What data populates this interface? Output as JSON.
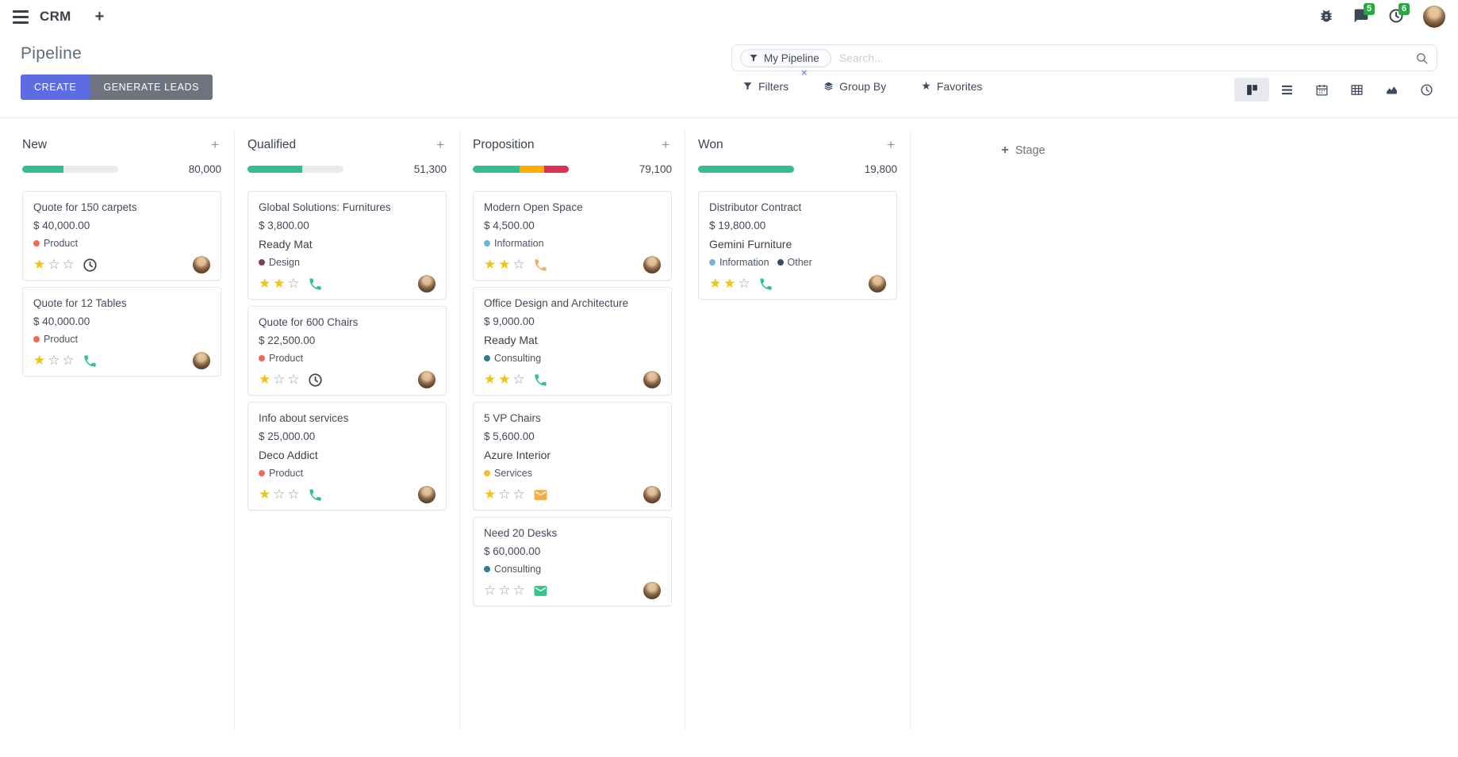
{
  "navbar": {
    "app_name": "CRM",
    "messages_badge": "5",
    "activities_badge": "6"
  },
  "control_panel": {
    "title": "Pipeline",
    "create_label": "CREATE",
    "generate_label": "GENERATE LEADS",
    "search": {
      "facet_label": "My Pipeline",
      "placeholder": "Search...",
      "facet_remove": "×"
    },
    "filters_label": "Filters",
    "group_by_label": "Group By",
    "favorites_label": "Favorites",
    "view_switcher": [
      "kanban",
      "list",
      "calendar",
      "pivot",
      "graph",
      "activity"
    ],
    "active_view": "kanban"
  },
  "colors": {
    "accent": "#5e6ce4",
    "secondary": "#6e747f",
    "badge_green": "#28a745",
    "progress_green": "#35be8b",
    "progress_orange": "#ffac00",
    "progress_red": "#dc3151",
    "star_filled": "#f1c40f"
  },
  "board": {
    "add_stage_label": "Stage",
    "columns": [
      {
        "name": "New",
        "total": "80,000",
        "progress": [
          {
            "color": "#35be8b",
            "pct": 43
          }
        ],
        "cards": [
          {
            "title": "Quote for 150 carpets",
            "amount": "$ 40,000.00",
            "partner": null,
            "tags": [
              {
                "label": "Product",
                "color": "#ee6a59"
              }
            ],
            "stars": 1,
            "activity": {
              "icon": "clock-icon",
              "color": "#3f4654"
            }
          },
          {
            "title": "Quote for 12 Tables",
            "amount": "$ 40,000.00",
            "partner": null,
            "tags": [
              {
                "label": "Product",
                "color": "#ee6a59"
              }
            ],
            "stars": 1,
            "activity": {
              "icon": "phone-icon",
              "color": "#2fc290"
            }
          }
        ]
      },
      {
        "name": "Qualified",
        "total": "51,300",
        "progress": [
          {
            "color": "#35be8b",
            "pct": 57
          }
        ],
        "cards": [
          {
            "title": "Global Solutions: Furnitures",
            "amount": "$ 3,800.00",
            "partner": "Ready Mat",
            "tags": [
              {
                "label": "Design",
                "color": "#7a3f5c"
              }
            ],
            "stars": 2,
            "activity": {
              "icon": "phone-icon",
              "color": "#2fc290"
            }
          },
          {
            "title": "Quote for 600 Chairs",
            "amount": "$ 22,500.00",
            "partner": null,
            "tags": [
              {
                "label": "Product",
                "color": "#ee6a59"
              }
            ],
            "stars": 1,
            "activity": {
              "icon": "clock-icon",
              "color": "#3f4654"
            }
          },
          {
            "title": "Info about services",
            "amount": "$ 25,000.00",
            "partner": "Deco Addict",
            "tags": [
              {
                "label": "Product",
                "color": "#ee6a59"
              }
            ],
            "stars": 1,
            "activity": {
              "icon": "phone-icon",
              "color": "#2fc290"
            }
          }
        ]
      },
      {
        "name": "Proposition",
        "total": "79,100",
        "progress": [
          {
            "color": "#35be8b",
            "pct": 49
          },
          {
            "color": "#ffac00",
            "pct": 25
          },
          {
            "color": "#dc3151",
            "pct": 26
          }
        ],
        "cards": [
          {
            "title": "Modern Open Space",
            "amount": "$ 4,500.00",
            "partner": null,
            "tags": [
              {
                "label": "Information",
                "color": "#6fb3e2"
              }
            ],
            "stars": 2,
            "activity": {
              "icon": "phone-icon",
              "color": "#f2ae5d"
            }
          },
          {
            "title": "Office Design and Architecture",
            "amount": "$ 9,000.00",
            "partner": "Ready Mat",
            "tags": [
              {
                "label": "Consulting",
                "color": "#2e7d8c"
              }
            ],
            "stars": 2,
            "activity": {
              "icon": "phone-icon",
              "color": "#2fc290"
            }
          },
          {
            "title": "5 VP Chairs",
            "amount": "$ 5,600.00",
            "partner": "Azure Interior",
            "tags": [
              {
                "label": "Services",
                "color": "#eec22c"
              }
            ],
            "stars": 1,
            "activity": {
              "icon": "envelope-icon",
              "color": "#f2ad44"
            }
          },
          {
            "title": "Need 20 Desks",
            "amount": "$ 60,000.00",
            "partner": null,
            "tags": [
              {
                "label": "Consulting",
                "color": "#2e7d8c"
              }
            ],
            "stars": 0,
            "activity": {
              "icon": "envelope-icon",
              "color": "#38c48f"
            }
          }
        ]
      },
      {
        "name": "Won",
        "total": "19,800",
        "progress": [
          {
            "color": "#35be8b",
            "pct": 100
          }
        ],
        "cards": [
          {
            "title": "Distributor Contract",
            "amount": "$ 19,800.00",
            "partner": "Gemini Furniture",
            "tags": [
              {
                "label": "Information",
                "color": "#6fb3e2"
              },
              {
                "label": "Other",
                "color": "#3b4a63"
              }
            ],
            "stars": 2,
            "activity": {
              "icon": "phone-icon",
              "color": "#2fc290"
            }
          }
        ]
      }
    ]
  }
}
